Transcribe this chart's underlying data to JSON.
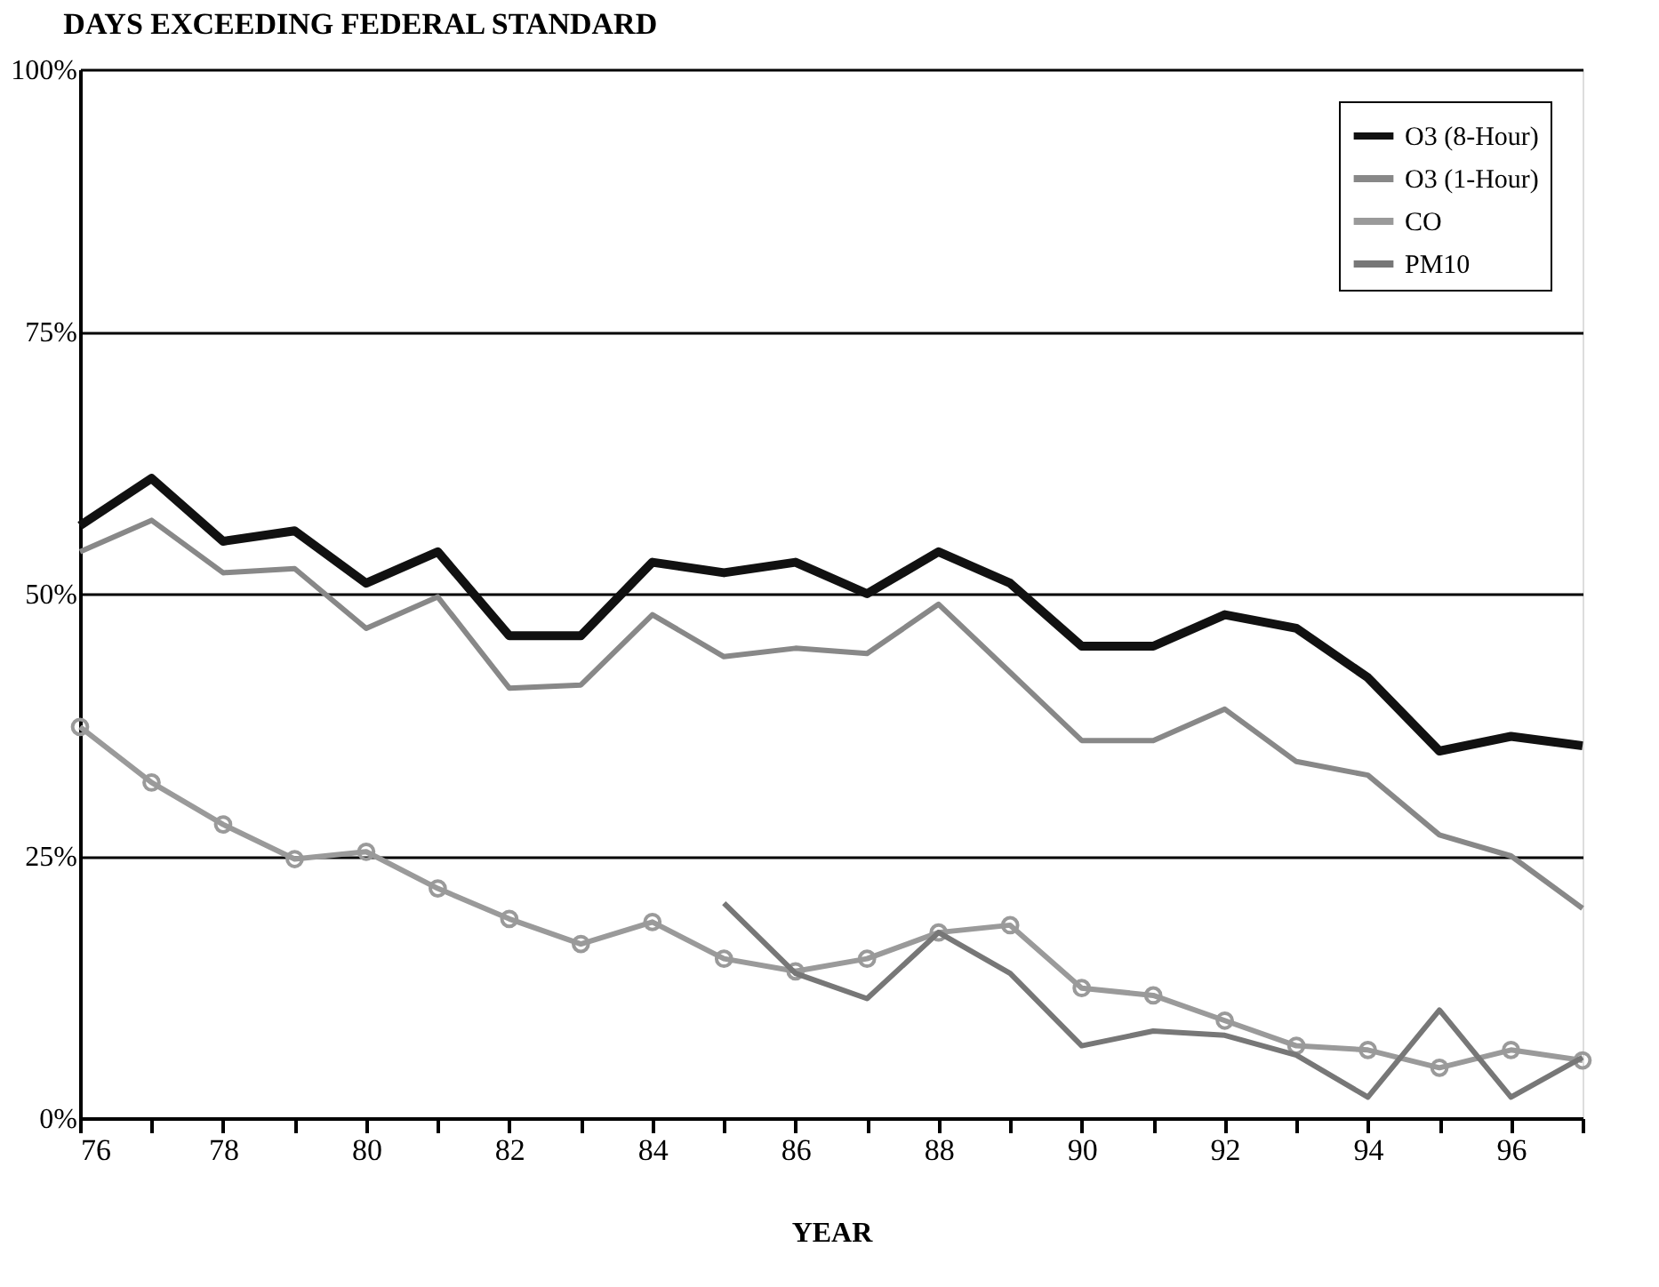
{
  "chart_data": {
    "type": "line",
    "title": "DAYS EXCEEDING FEDERAL STANDARD",
    "xlabel": "YEAR",
    "x": [
      76,
      77,
      78,
      79,
      80,
      81,
      82,
      83,
      84,
      85,
      86,
      87,
      88,
      89,
      90,
      91,
      92,
      93,
      94,
      95,
      96,
      97
    ],
    "series": [
      {
        "name": "O3 (8-Hour)",
        "color": "#111111",
        "marker": "none",
        "values": [
          56.5,
          61,
          55,
          56,
          51,
          54,
          46,
          46,
          53,
          52,
          53,
          50,
          54,
          51,
          45,
          45,
          48,
          46.7,
          42,
          35,
          36.4,
          35.5
        ]
      },
      {
        "name": "O3 (1-Hour)",
        "color": "#888888",
        "marker": "none",
        "values": [
          54,
          57,
          52,
          52.4,
          46.7,
          49.7,
          41,
          41.3,
          48,
          44,
          44.8,
          44.3,
          49,
          42.5,
          36,
          36,
          39,
          34,
          32.7,
          27,
          25,
          20
        ]
      },
      {
        "name": "CO",
        "color": "#9a9a9a",
        "marker": "circle",
        "values": [
          37.3,
          32,
          28,
          24.7,
          25.4,
          21.9,
          19,
          16.6,
          18.7,
          15.2,
          14,
          15.2,
          17.7,
          18.4,
          12.4,
          11.7,
          9.3,
          6.9,
          6.5,
          4.8,
          6.5,
          5.5
        ]
      },
      {
        "name": "PM10",
        "color": "#777777",
        "marker": "none",
        "values": [
          null,
          null,
          null,
          null,
          null,
          null,
          null,
          null,
          null,
          20.5,
          13.8,
          11.4,
          17.7,
          13.8,
          6.9,
          8.3,
          7.9,
          6,
          2,
          10.3,
          2,
          5.8
        ]
      }
    ],
    "xlim": [
      76,
      97
    ],
    "xticks": [
      76,
      {
        "value": 77,
        "label": null
      },
      78,
      {
        "value": 79,
        "label": null
      },
      80,
      {
        "value": 81,
        "label": null
      },
      82,
      {
        "value": 83,
        "label": null
      },
      84,
      {
        "value": 85,
        "label": null
      },
      86,
      {
        "value": 87,
        "label": null
      },
      88,
      {
        "value": 89,
        "label": null
      },
      90,
      {
        "value": 91,
        "label": null
      },
      92,
      {
        "value": 93,
        "label": null
      },
      94,
      {
        "value": 95,
        "label": null
      },
      96,
      {
        "value": 97,
        "label": null
      }
    ],
    "ylim": [
      0,
      100
    ],
    "yticks": [
      {
        "value": 0,
        "label": "0%"
      },
      {
        "value": 25,
        "label": "25%"
      },
      {
        "value": 50,
        "label": "50%"
      },
      {
        "value": 75,
        "label": "75%"
      },
      {
        "value": 100,
        "label": "100%"
      }
    ],
    "grid": "y",
    "legend": "top right",
    "line_style": "solid"
  }
}
